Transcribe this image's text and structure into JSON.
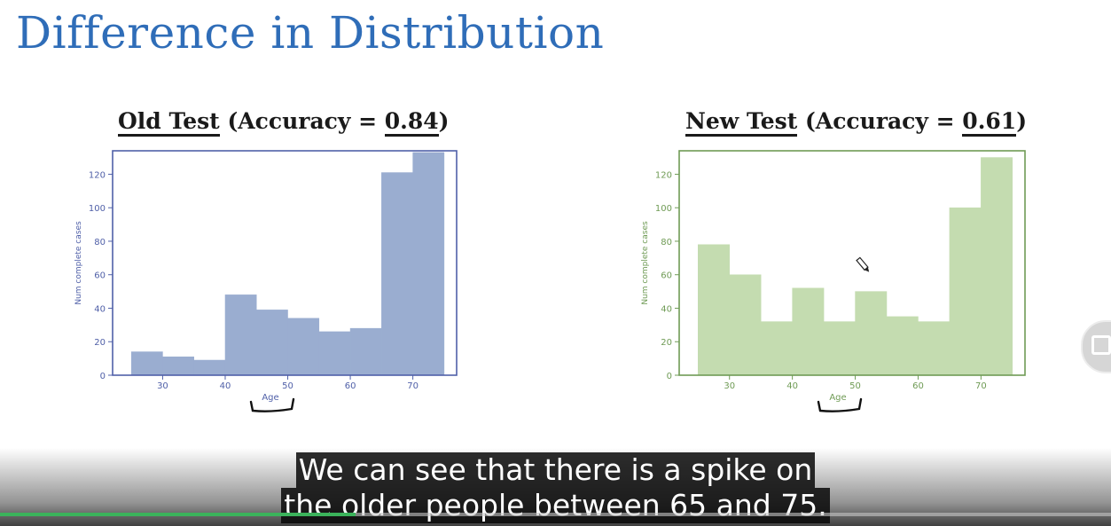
{
  "slide": {
    "title": "Difference in Distribution"
  },
  "caption": {
    "lines": [
      "We can see that there is a spike on",
      "the older people between 65 and 75."
    ]
  },
  "video": {
    "progress": 0.32
  },
  "chart_data": [
    {
      "type": "bar",
      "title_label": "Old Test",
      "title_prefix": "(Accuracy = ",
      "accuracy": "0.84",
      "title_suffix": ")",
      "xlabel": "Age",
      "ylabel": "Num complete cases",
      "xlim": [
        22,
        77
      ],
      "ylim": [
        0,
        134
      ],
      "xticks": [
        30,
        40,
        50,
        60,
        70
      ],
      "yticks": [
        0,
        20,
        40,
        60,
        80,
        100,
        120
      ],
      "bin_edges": [
        25,
        30,
        35,
        40,
        45,
        50,
        55,
        60,
        65,
        70,
        75
      ],
      "values": [
        14,
        11,
        9,
        48,
        39,
        34,
        26,
        28,
        121,
        133
      ],
      "color": "#9aadd0",
      "axis_color": "#5060a8"
    },
    {
      "type": "bar",
      "title_label": "New Test",
      "title_prefix": "(Accuracy = ",
      "accuracy": "0.61",
      "title_suffix": ")",
      "xlabel": "Age",
      "ylabel": "Num complete cases",
      "xlim": [
        22,
        77
      ],
      "ylim": [
        0,
        134
      ],
      "xticks": [
        30,
        40,
        50,
        60,
        70
      ],
      "yticks": [
        0,
        20,
        40,
        60,
        80,
        100,
        120
      ],
      "bin_edges": [
        25,
        30,
        35,
        40,
        45,
        50,
        55,
        60,
        65,
        70,
        75
      ],
      "values": [
        78,
        60,
        32,
        52,
        32,
        50,
        35,
        32,
        100,
        130
      ],
      "color": "#c4dcb0",
      "axis_color": "#6f9b55"
    }
  ]
}
